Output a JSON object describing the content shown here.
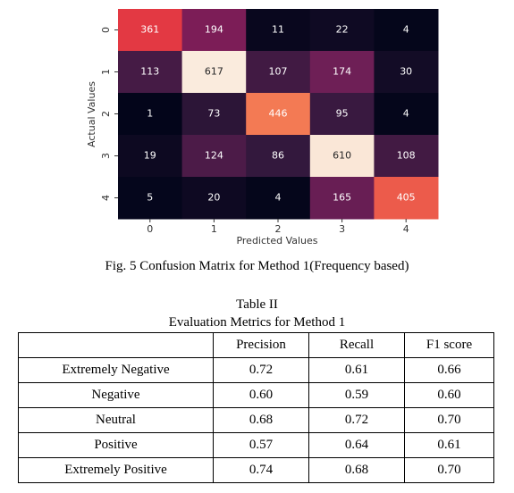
{
  "chart_data": {
    "type": "heatmap",
    "x_label": "Predicted Values",
    "y_label": "Actual Values",
    "x_categories": [
      "0",
      "1",
      "2",
      "3",
      "4"
    ],
    "y_categories": [
      "0",
      "1",
      "2",
      "3",
      "4"
    ],
    "values": [
      [
        361,
        194,
        11,
        22,
        4
      ],
      [
        113,
        617,
        107,
        174,
        30
      ],
      [
        1,
        73,
        446,
        95,
        4
      ],
      [
        19,
        124,
        86,
        610,
        108
      ],
      [
        5,
        20,
        4,
        165,
        405
      ]
    ],
    "color_scale": [
      "#03051a",
      "#35193e",
      "#701f57",
      "#ae1759",
      "#e13342",
      "#f37651",
      "#f6b48e",
      "#faebdd"
    ]
  },
  "caption": "Fig. 5 Confusion Matrix for Method 1(Frequency based)",
  "table": {
    "title": [
      "Table II",
      "Evaluation Metrics for Method 1"
    ],
    "header": [
      "Precision",
      "Recall",
      "F1 score"
    ],
    "rows": [
      [
        "Extremely Negative",
        "0.72",
        "0.61",
        "0.66"
      ],
      [
        "Negative",
        "0.60",
        "0.59",
        "0.60"
      ],
      [
        "Neutral",
        "0.68",
        "0.72",
        "0.70"
      ],
      [
        "Positive",
        "0.57",
        "0.64",
        "0.61"
      ],
      [
        "Extremely Positive",
        "0.74",
        "0.68",
        "0.70"
      ]
    ]
  }
}
